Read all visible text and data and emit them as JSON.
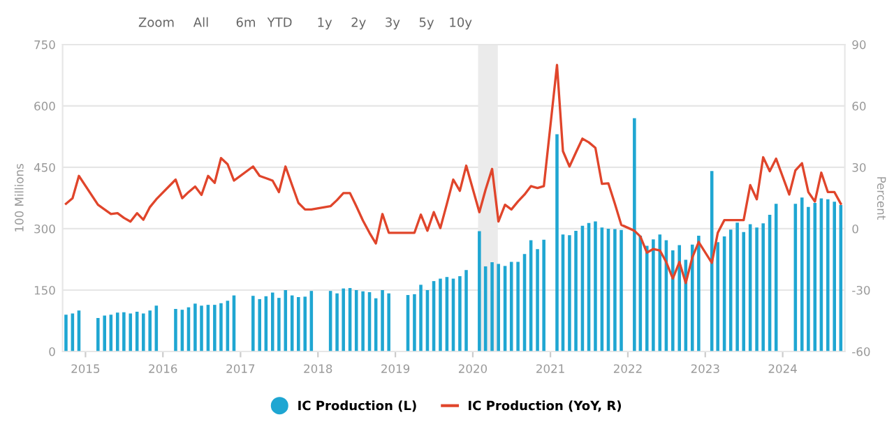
{
  "chart_data": {
    "type": "bar",
    "xlabel": null,
    "ylabel": "100 Millions",
    "y2label": "Percent",
    "annotations": [
      "Zoom",
      "All",
      "6m",
      "YTD",
      "1y",
      "2y",
      "3y",
      "5y",
      "10y"
    ],
    "xlim": [
      "2014-09-15",
      "2024-10-20"
    ],
    "xticks": [
      "2015",
      "2016",
      "2017",
      "2018",
      "2019",
      "2020",
      "2021",
      "2022",
      "2023",
      "2024"
    ],
    "ylim": [
      0,
      750
    ],
    "yticks": [
      0,
      150,
      300,
      450,
      600,
      750
    ],
    "y2lim": [
      -60,
      90
    ],
    "y2ticks": [
      -60,
      -30,
      0,
      30,
      60,
      90
    ],
    "grid": "y",
    "legend": "bottom",
    "bands": [
      {
        "axis": "x",
        "from": "2020-01-26",
        "to": "2020-04-28",
        "color": "#ebebeb"
      }
    ],
    "series": [
      {
        "name": "IC Production (L)",
        "color": "#1fa6d2",
        "x": [
          "2014-10",
          "2014-11",
          "2014-12",
          "2015-03",
          "2015-04",
          "2015-05",
          "2015-06",
          "2015-07",
          "2015-08",
          "2015-09",
          "2015-10",
          "2015-11",
          "2015-12",
          "2016-03",
          "2016-04",
          "2016-05",
          "2016-06",
          "2016-07",
          "2016-08",
          "2016-09",
          "2016-10",
          "2016-11",
          "2016-12",
          "2017-03",
          "2017-04",
          "2017-05",
          "2017-06",
          "2017-07",
          "2017-08",
          "2017-09",
          "2017-10",
          "2017-11",
          "2017-12",
          "2018-03",
          "2018-04",
          "2018-05",
          "2018-06",
          "2018-07",
          "2018-08",
          "2018-09",
          "2018-10",
          "2018-11",
          "2018-12",
          "2019-03",
          "2019-04",
          "2019-05",
          "2019-06",
          "2019-07",
          "2019-08",
          "2019-09",
          "2019-10",
          "2019-11",
          "2019-12",
          "2020-02",
          "2020-03",
          "2020-04",
          "2020-05",
          "2020-06",
          "2020-07",
          "2020-08",
          "2020-09",
          "2020-10",
          "2020-11",
          "2020-12",
          "2021-02",
          "2021-03",
          "2021-04",
          "2021-05",
          "2021-06",
          "2021-07",
          "2021-08",
          "2021-09",
          "2021-10",
          "2021-11",
          "2021-12",
          "2022-02",
          "2022-03",
          "2022-04",
          "2022-05",
          "2022-06",
          "2022-07",
          "2022-08",
          "2022-09",
          "2022-10",
          "2022-11",
          "2022-12",
          "2023-02",
          "2023-03",
          "2023-04",
          "2023-05",
          "2023-06",
          "2023-07",
          "2023-08",
          "2023-09",
          "2023-10",
          "2023-11",
          "2023-12",
          "2024-03",
          "2024-04",
          "2024-05",
          "2024-06",
          "2024-07",
          "2024-08",
          "2024-09",
          "2024-10"
        ],
        "values": [
          90,
          93,
          100,
          82,
          88,
          90,
          95,
          96,
          93,
          97,
          93,
          100,
          112,
          104,
          102,
          108,
          117,
          112,
          114,
          114,
          118,
          124,
          137,
          136,
          128,
          135,
          144,
          131,
          150,
          137,
          133,
          134,
          148,
          148,
          142,
          154,
          155,
          150,
          147,
          145,
          130,
          150,
          142,
          138,
          140,
          163,
          150,
          172,
          178,
          182,
          178,
          184,
          199,
          294,
          208,
          218,
          214,
          209,
          219,
          219,
          238,
          272,
          250,
          273,
          531,
          286,
          284,
          295,
          307,
          314,
          318,
          303,
          300,
          299,
          297,
          570,
          283,
          258,
          274,
          286,
          272,
          247,
          260,
          224,
          261,
          283,
          441,
          267,
          281,
          298,
          315,
          292,
          311,
          303,
          313,
          334,
          361,
          361,
          376,
          353,
          363,
          374,
          372,
          366,
          358
        ]
      },
      {
        "name": "IC Production (YoY, R)",
        "type": "line",
        "axis": "y2",
        "color": "#e0452b",
        "x": [
          "2014-10",
          "2014-11",
          "2014-12",
          "2015-03",
          "2015-04",
          "2015-05",
          "2015-06",
          "2015-07",
          "2015-08",
          "2015-09",
          "2015-10",
          "2015-11",
          "2015-12",
          "2016-03",
          "2016-04",
          "2016-05",
          "2016-06",
          "2016-07",
          "2016-08",
          "2016-09",
          "2016-10",
          "2016-11",
          "2016-12",
          "2017-03",
          "2017-04",
          "2017-05",
          "2017-06",
          "2017-07",
          "2017-08",
          "2017-09",
          "2017-10",
          "2017-11",
          "2017-12",
          "2018-03",
          "2018-04",
          "2018-05",
          "2018-06",
          "2018-07",
          "2018-08",
          "2018-09",
          "2018-10",
          "2018-11",
          "2018-12",
          "2019-03",
          "2019-04",
          "2019-05",
          "2019-06",
          "2019-07",
          "2019-08",
          "2019-09",
          "2019-10",
          "2019-11",
          "2019-12",
          "2020-02",
          "2020-03",
          "2020-04",
          "2020-05",
          "2020-06",
          "2020-07",
          "2020-08",
          "2020-09",
          "2020-10",
          "2020-11",
          "2020-12",
          "2021-02",
          "2021-03",
          "2021-04",
          "2021-05",
          "2021-06",
          "2021-07",
          "2021-08",
          "2021-09",
          "2021-10",
          "2021-11",
          "2021-12",
          "2022-02",
          "2022-03",
          "2022-04",
          "2022-05",
          "2022-06",
          "2022-07",
          "2022-08",
          "2022-09",
          "2022-10",
          "2022-11",
          "2022-12",
          "2023-02",
          "2023-03",
          "2023-04",
          "2023-05",
          "2023-06",
          "2023-07",
          "2023-08",
          "2023-09",
          "2023-10",
          "2023-11",
          "2023-12",
          "2024-02",
          "2024-03",
          "2024-04",
          "2024-05",
          "2024-06",
          "2024-07",
          "2024-08",
          "2024-09",
          "2024-10"
        ],
        "values": [
          12.2,
          14.9,
          25.8,
          11.7,
          9.4,
          7.2,
          7.6,
          5.3,
          3.5,
          7.6,
          4.4,
          10.6,
          14.4,
          24.0,
          14.9,
          17.9,
          20.6,
          16.5,
          25.8,
          22.4,
          34.5,
          31.5,
          23.5,
          30.4,
          25.8,
          24.7,
          23.5,
          17.9,
          30.4,
          21.3,
          12.6,
          9.4,
          9.4,
          11.0,
          14.0,
          17.4,
          17.4,
          11.0,
          4.0,
          -2.0,
          -7.2,
          7.2,
          -2.0,
          -2.0,
          -2.0,
          6.9,
          -1.0,
          8.1,
          0.3,
          12.2,
          24.0,
          18.5,
          30.8,
          8.1,
          19.0,
          29.2,
          3.5,
          11.7,
          9.4,
          13.3,
          16.7,
          20.8,
          19.9,
          20.8,
          80.0,
          37.9,
          30.4,
          37.2,
          44.0,
          42.2,
          39.5,
          21.9,
          22.2,
          12.2,
          1.9,
          -1.0,
          -3.8,
          -11.7,
          -9.9,
          -10.6,
          -16.3,
          -24.3,
          -16.3,
          -26.5,
          -14.0,
          -6.5,
          -16.7,
          -2.0,
          4.2,
          4.2,
          4.2,
          4.2,
          21.3,
          14.4,
          34.9,
          28.1,
          34.2,
          16.7,
          28.5,
          32.0,
          17.9,
          13.3,
          27.4,
          17.9,
          17.9,
          12.2
        ]
      }
    ]
  }
}
